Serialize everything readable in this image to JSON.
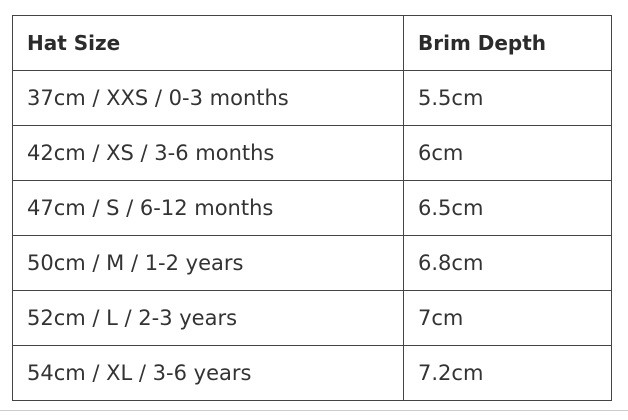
{
  "table": {
    "header": [
      "Hat Size",
      "Brim Depth"
    ],
    "rows": [
      [
        "37cm / XXS / 0-3 months",
        "5.5cm"
      ],
      [
        "42cm / XS / 3-6 months",
        "6cm"
      ],
      [
        "47cm / S / 6-12 months",
        "6.5cm"
      ],
      [
        "50cm / M / 1-2 years",
        "6.8cm"
      ],
      [
        "52cm / L / 2-3 years",
        "7cm"
      ],
      [
        "54cm / XL / 3-6 years",
        "7.2cm"
      ]
    ]
  }
}
